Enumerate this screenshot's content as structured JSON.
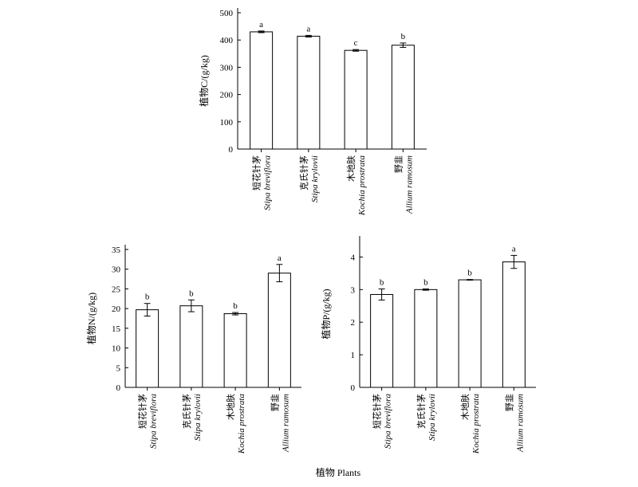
{
  "chart_data": [
    {
      "type": "bar",
      "categories": [
        {
          "zh": "短花针茅",
          "en": "Stipa breviflora"
        },
        {
          "zh": "克氏针茅",
          "en": "Stipa krylovii"
        },
        {
          "zh": "木地肤",
          "en": "Kochia prostrata"
        },
        {
          "zh": "野韭",
          "en": "Allium ramosum"
        }
      ],
      "values": [
        430,
        414,
        362,
        381
      ],
      "errors": [
        3,
        3,
        3,
        8
      ],
      "significance": [
        "a",
        "a",
        "c",
        "b"
      ],
      "ylabel": "植物C/(g/kg)",
      "ylim": [
        0,
        500
      ],
      "yticks": [
        0,
        100,
        200,
        300,
        400,
        500
      ]
    },
    {
      "type": "bar",
      "categories": [
        {
          "zh": "短花针茅",
          "en": "Stipa breviflora"
        },
        {
          "zh": "克氏针茅",
          "en": "Stipa krylovii"
        },
        {
          "zh": "木地肤",
          "en": "Kochia prostrata"
        },
        {
          "zh": "野韭",
          "en": "Allium ramosum"
        }
      ],
      "values": [
        19.7,
        20.7,
        18.7,
        29.0
      ],
      "errors": [
        1.6,
        1.5,
        0.3,
        2.2
      ],
      "significance": [
        "b",
        "b",
        "b",
        "a"
      ],
      "ylabel": "植物N/(g/kg)",
      "ylim": [
        0,
        35
      ],
      "yticks": [
        0,
        5,
        10,
        15,
        20,
        25,
        30,
        35
      ]
    },
    {
      "type": "bar",
      "categories": [
        {
          "zh": "短花针茅",
          "en": "Stipa breviflora"
        },
        {
          "zh": "克氏针茅",
          "en": "Stipa krylovii"
        },
        {
          "zh": "木地肤",
          "en": "Kochia prostrata"
        },
        {
          "zh": "野韭",
          "en": "Allium ramosum"
        }
      ],
      "values": [
        2.85,
        3.0,
        3.3,
        3.85
      ],
      "errors": [
        0.17,
        0.02,
        0.01,
        0.2
      ],
      "significance": [
        "b",
        "b",
        "b",
        "a"
      ],
      "ylabel": "植物P/(g/kg)",
      "ylim": [
        0,
        4.5
      ],
      "yticks": [
        0,
        1,
        2,
        3,
        4
      ]
    }
  ],
  "xaxis_title": "植物 Plants"
}
